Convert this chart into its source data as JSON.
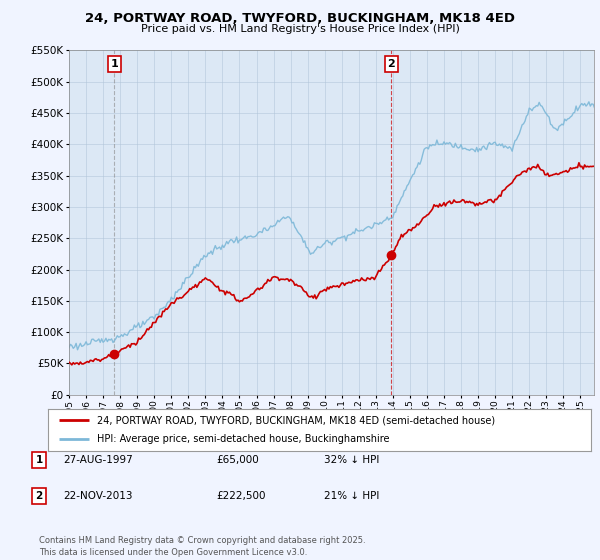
{
  "title": "24, PORTWAY ROAD, TWYFORD, BUCKINGHAM, MK18 4ED",
  "subtitle": "Price paid vs. HM Land Registry's House Price Index (HPI)",
  "legend_line1": "24, PORTWAY ROAD, TWYFORD, BUCKINGHAM, MK18 4ED (semi-detached house)",
  "legend_line2": "HPI: Average price, semi-detached house, Buckinghamshire",
  "footer": "Contains HM Land Registry data © Crown copyright and database right 2025.\nThis data is licensed under the Open Government Licence v3.0.",
  "price_color": "#cc0000",
  "hpi_color": "#7db8d8",
  "transaction1_date": 1997.65,
  "transaction1_price": 65000,
  "transaction1_label": "1",
  "transaction2_date": 2013.9,
  "transaction2_price": 222500,
  "transaction2_label": "2",
  "table_row1": [
    "1",
    "27-AUG-1997",
    "£65,000",
    "32% ↓ HPI"
  ],
  "table_row2": [
    "2",
    "22-NOV-2013",
    "£222,500",
    "21% ↓ HPI"
  ],
  "ylim": [
    0,
    550000
  ],
  "yticks": [
    0,
    50000,
    100000,
    150000,
    200000,
    250000,
    300000,
    350000,
    400000,
    450000,
    500000,
    550000
  ],
  "bg_color": "#f0f4ff",
  "plot_bg": "#dce8f5",
  "vline1_color": "#888888",
  "vline2_color": "#cc0000"
}
